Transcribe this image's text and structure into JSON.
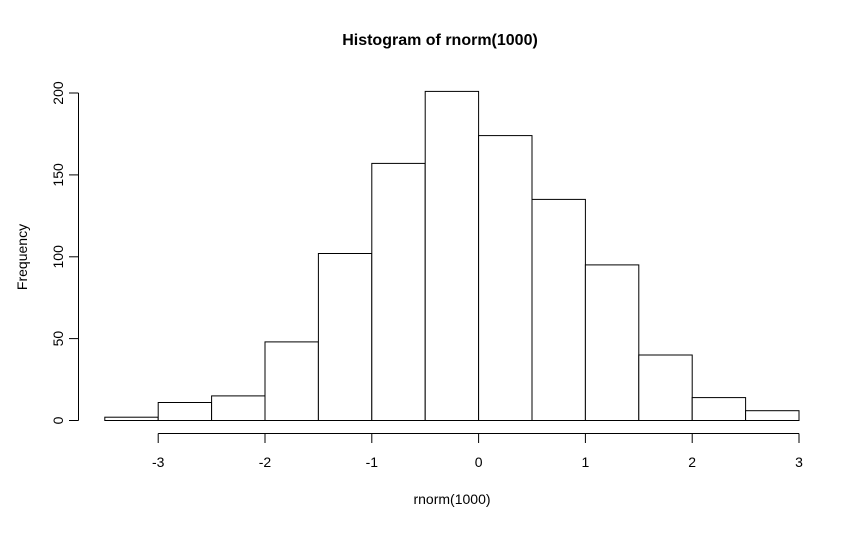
{
  "chart_data": {
    "type": "bar",
    "subtype": "histogram",
    "title": "Histogram of rnorm(1000)",
    "xlabel": "rnorm(1000)",
    "ylabel": "Frequency",
    "bin_edges": [
      -3.5,
      -3.0,
      -2.5,
      -2.0,
      -1.5,
      -1.0,
      -0.5,
      0.0,
      0.5,
      1.0,
      1.5,
      2.0,
      2.5,
      3.0
    ],
    "counts": [
      2,
      11,
      15,
      48,
      102,
      157,
      201,
      174,
      135,
      95,
      40,
      14,
      6
    ],
    "total_n": 1000,
    "x_ticks": [
      -3,
      -2,
      -1,
      0,
      1,
      2,
      3
    ],
    "x_tick_labels": [
      "-3",
      "-2",
      "-1",
      "0",
      "1",
      "2",
      "3"
    ],
    "y_ticks": [
      0,
      50,
      100,
      150,
      200
    ],
    "y_tick_labels": [
      "0",
      "50",
      "100",
      "150",
      "200"
    ],
    "xlim": [
      -3.76,
      3.26
    ],
    "ylim": [
      0,
      208
    ],
    "grid": false,
    "legend": null,
    "bar_fill": "#ffffff",
    "bar_stroke": "#000000",
    "axis_color": "#000000",
    "text_color": "#000000",
    "background": "#ffffff"
  }
}
